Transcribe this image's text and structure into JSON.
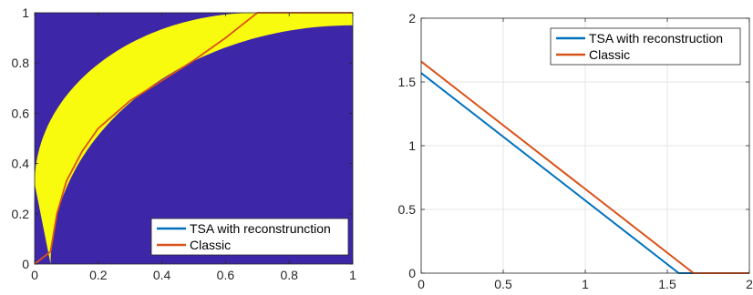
{
  "chart_data": [
    {
      "type": "heatmap",
      "title": "",
      "xlabel": "",
      "ylabel": "",
      "xlim": [
        0,
        1
      ],
      "ylim": [
        0,
        1
      ],
      "xticks": [
        "0",
        "0.2",
        "0.4",
        "0.6",
        "0.8",
        "1"
      ],
      "yticks": [
        "0",
        "0.2",
        "0.4",
        "0.6",
        "0.8",
        "1"
      ],
      "grid": false,
      "legend_position": "bottom-right",
      "background_color": "#3e26a8",
      "region_color": "#f9fb0e",
      "region_boundary": {
        "upper": {
          "x0": 0.0,
          "y0": 0.32,
          "x_end": 0.7,
          "y_end": 1.0
        },
        "lower": {
          "x0": 0.05,
          "y0": 0.0,
          "x_end": 1.0,
          "y_end": 0.95
        }
      },
      "series": [
        {
          "name": "TSA with reconstrunction",
          "color": "#0072bd",
          "x": [],
          "y": []
        },
        {
          "name": "Classic",
          "color": "#d95319",
          "x": [
            0.0,
            0.05,
            0.07,
            0.1,
            0.15,
            0.2,
            0.3,
            0.4,
            0.5,
            0.6,
            0.7,
            1.0
          ],
          "y": [
            0.0,
            0.05,
            0.2,
            0.33,
            0.45,
            0.54,
            0.65,
            0.73,
            0.81,
            0.9,
            1.0,
            1.0
          ]
        }
      ]
    },
    {
      "type": "line",
      "title": "",
      "xlabel": "",
      "ylabel": "",
      "xlim": [
        0,
        2
      ],
      "ylim": [
        0,
        2
      ],
      "xticks": [
        "0",
        "0.5",
        "1",
        "1.5",
        "2"
      ],
      "yticks": [
        "0",
        "0.5",
        "1",
        "1.5",
        "2"
      ],
      "grid": true,
      "legend_position": "top-right",
      "series": [
        {
          "name": "TSA with reconstruction",
          "color": "#0072bd",
          "x": [
            0,
            1.57,
            2
          ],
          "y": [
            1.57,
            0,
            0
          ]
        },
        {
          "name": "Classic",
          "color": "#d95319",
          "x": [
            0,
            1.66,
            2
          ],
          "y": [
            1.66,
            0,
            0
          ]
        }
      ]
    }
  ]
}
